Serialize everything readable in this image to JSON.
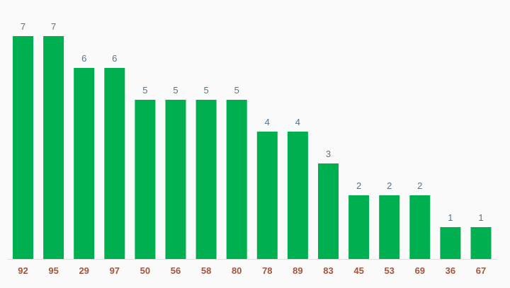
{
  "chart_data": {
    "type": "bar",
    "title": "",
    "xlabel": "",
    "ylabel": "",
    "categories": [
      "92",
      "95",
      "29",
      "97",
      "50",
      "56",
      "58",
      "80",
      "78",
      "89",
      "83",
      "45",
      "53",
      "69",
      "36",
      "67"
    ],
    "values": [
      7,
      7,
      6,
      6,
      5,
      5,
      5,
      5,
      4,
      4,
      3,
      2,
      2,
      2,
      1,
      1
    ],
    "ylim": [
      0,
      7
    ],
    "grid": false,
    "legend": "none",
    "data_labels": true,
    "colors": {
      "bar": "#00b050",
      "value_label": "#5a7285",
      "category_label": "#a0563f",
      "axis": "#dddddd",
      "background": "#fafafa"
    }
  }
}
